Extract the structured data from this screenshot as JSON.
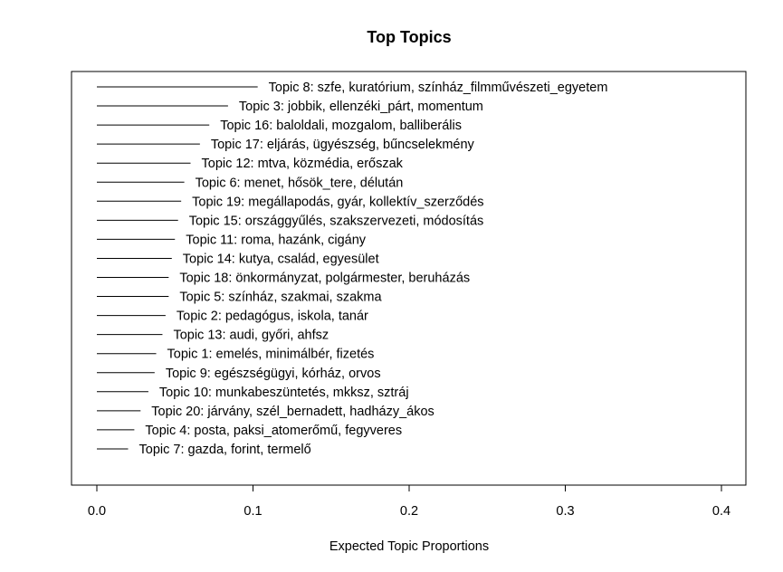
{
  "chart_data": {
    "type": "bar",
    "orientation": "horizontal",
    "title": "Top Topics",
    "xlabel": "Expected Topic Proportions",
    "ylabel": "",
    "xlim": [
      0,
      0.42
    ],
    "xticks": [
      0.0,
      0.1,
      0.2,
      0.3,
      0.4
    ],
    "xtick_labels": [
      "0.0",
      "0.1",
      "0.2",
      "0.3",
      "0.4"
    ],
    "grid": false,
    "bars": [
      {
        "label": "Topic 8: szfe, kuratórium, színház_filmművészeti_egyetem",
        "value": 0.103
      },
      {
        "label": "Topic 3: jobbik, ellenzéki_párt, momentum",
        "value": 0.084
      },
      {
        "label": "Topic 16: baloldali, mozgalom, balliberális",
        "value": 0.072
      },
      {
        "label": "Topic 17: eljárás, ügyészség, bűncselekmény",
        "value": 0.066
      },
      {
        "label": "Topic 12: mtva, közmédia, erőszak",
        "value": 0.06
      },
      {
        "label": "Topic 6: menet, hősök_tere, délután",
        "value": 0.056
      },
      {
        "label": "Topic 19: megállapodás, gyár, kollektív_szerződés",
        "value": 0.054
      },
      {
        "label": "Topic 15: országgyűlés, szakszervezeti, módosítás",
        "value": 0.052
      },
      {
        "label": "Topic 11: roma, hazánk, cigány",
        "value": 0.05
      },
      {
        "label": "Topic 14: kutya, család, egyesület",
        "value": 0.048
      },
      {
        "label": "Topic 18: önkormányzat, polgármester, beruházás",
        "value": 0.046
      },
      {
        "label": "Topic 5: színház, szakmai, szakma",
        "value": 0.046
      },
      {
        "label": "Topic 2: pedagógus, iskola, tanár",
        "value": 0.044
      },
      {
        "label": "Topic 13: audi, győri, ahfsz",
        "value": 0.042
      },
      {
        "label": "Topic 1: emelés, minimálbér, fizetés",
        "value": 0.038
      },
      {
        "label": "Topic 9: egészségügyi, kórház, orvos",
        "value": 0.037
      },
      {
        "label": "Topic 10: munkabeszüntetés, mkksz, sztráj",
        "value": 0.033
      },
      {
        "label": "Topic 20: járvány, szél_bernadett, hadházy_ákos",
        "value": 0.028
      },
      {
        "label": "Topic 4: posta, paksi_atomerőmű, fegyveres",
        "value": 0.024
      },
      {
        "label": "Topic 7: gazda, forint, termelő",
        "value": 0.02
      }
    ]
  }
}
